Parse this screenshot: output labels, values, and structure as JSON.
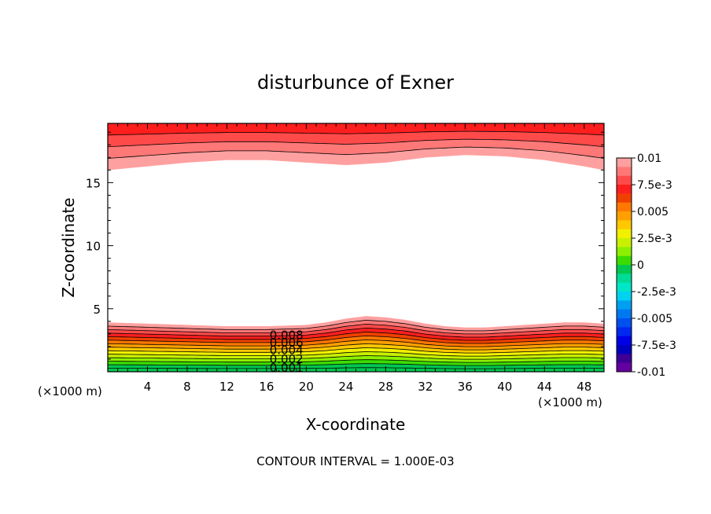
{
  "chart_data": {
    "type": "heatmap",
    "subtype": "filled-contour",
    "title": "disturbunce of Exner",
    "xlabel": "X-coordinate",
    "ylabel": "Z-coordinate",
    "x_unit": "(×1000 m)",
    "x_unit_right": "(×1000 m)",
    "footer": "CONTOUR INTERVAL = 1.000E-03",
    "xlim": [
      0,
      50
    ],
    "ylim": [
      0,
      19.7
    ],
    "x_ticks": [
      4,
      8,
      12,
      16,
      20,
      24,
      28,
      32,
      36,
      40,
      44,
      48
    ],
    "y_ticks": [
      5,
      10,
      15
    ],
    "contour_labels": [
      {
        "text": "0.008",
        "x": 18,
        "y": 2.9
      },
      {
        "text": "0.006",
        "x": 18,
        "y": 2.3
      },
      {
        "text": "0.004",
        "x": 18,
        "y": 1.7
      },
      {
        "text": "0.002",
        "x": 18,
        "y": 1.0
      },
      {
        "text": "0.001",
        "x": 18,
        "y": 0.3
      }
    ],
    "lower_region": {
      "x": [
        0,
        4,
        8,
        12,
        16,
        20,
        22,
        24,
        26,
        28,
        30,
        32,
        34,
        36,
        38,
        40,
        42,
        44,
        46,
        48,
        50
      ],
      "top_of_field": [
        3.9,
        3.8,
        3.7,
        3.6,
        3.6,
        3.7,
        3.9,
        4.2,
        4.4,
        4.3,
        4.1,
        3.8,
        3.6,
        3.5,
        3.5,
        3.6,
        3.7,
        3.8,
        3.9,
        3.9,
        3.8
      ],
      "hump": [
        0.0,
        0.0,
        -0.05,
        -0.1,
        -0.1,
        0.0,
        0.15,
        0.4,
        0.55,
        0.45,
        0.25,
        0.0,
        -0.2,
        -0.3,
        -0.3,
        -0.2,
        -0.05,
        0.1,
        0.2,
        0.2,
        0.15
      ]
    },
    "upper_region": {
      "x": [
        0,
        4,
        8,
        12,
        16,
        20,
        24,
        28,
        32,
        36,
        40,
        44,
        48,
        50
      ],
      "bottom_of_field": [
        16.0,
        16.3,
        16.6,
        16.8,
        16.8,
        16.6,
        16.4,
        16.6,
        17.0,
        17.2,
        17.1,
        16.8,
        16.3,
        16.0
      ]
    },
    "colorbar": {
      "labels": [
        "0.01",
        "7.5e-3",
        "0.005",
        "2.5e-3",
        "0",
        "-2.5e-3",
        "-0.005",
        "-7.5e-3",
        "-0.01"
      ],
      "colors_top_to_bottom": [
        "#ffa0a0",
        "#ff7878",
        "#ff4a4a",
        "#ff1e1e",
        "#f04000",
        "#ff7800",
        "#ffa000",
        "#ffc800",
        "#f0f000",
        "#c8f000",
        "#8cf000",
        "#3cdc00",
        "#00c850",
        "#00dc96",
        "#00e6c8",
        "#00d2f0",
        "#00a0f0",
        "#0078f0",
        "#0050f0",
        "#0028f0",
        "#0000e6",
        "#0000be",
        "#3c0096",
        "#6400a0"
      ]
    }
  }
}
